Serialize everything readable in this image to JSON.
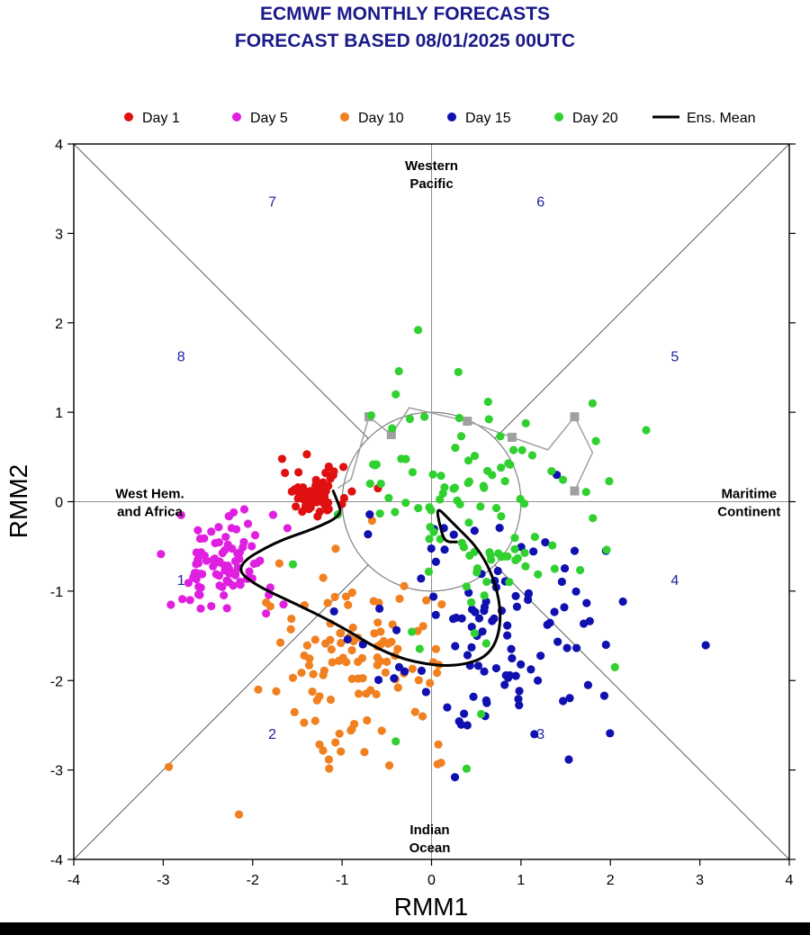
{
  "chart_data": {
    "type": "scatter",
    "title": [
      "ECMWF MONTHLY FORECASTS",
      "FORECAST  BASED 08/01/2025 00UTC"
    ],
    "xlabel": "RMM1",
    "ylabel": "RMM2",
    "xlim": [
      -4,
      4
    ],
    "ylim": [
      -4,
      4
    ],
    "xticks": [
      -4,
      -3,
      -2,
      -1,
      0,
      1,
      2,
      3,
      4
    ],
    "yticks": [
      -4,
      -3,
      -2,
      -1,
      0,
      1,
      2,
      3,
      4
    ],
    "legend": {
      "placement": "top",
      "entries": [
        {
          "label": "Day 1",
          "color": "#e01010",
          "kind": "dot"
        },
        {
          "label": "Day 5",
          "color": "#e020e0",
          "kind": "dot"
        },
        {
          "label": "Day 10",
          "color": "#f08020",
          "kind": "dot"
        },
        {
          "label": "Day 15",
          "color": "#1010b0",
          "kind": "dot"
        },
        {
          "label": "Day 20",
          "color": "#30d030",
          "kind": "dot"
        },
        {
          "label": "Ens. Mean",
          "color": "#000000",
          "kind": "line"
        }
      ]
    },
    "region_labels": [
      {
        "text": [
          "Western",
          "Pacific"
        ],
        "x": 0.0,
        "y": 3.67
      },
      {
        "text": [
          "Indian",
          "Ocean"
        ],
        "x": -0.02,
        "y": -3.76
      },
      {
        "text": [
          "West Hem.",
          "and Africa"
        ],
        "x": -3.15,
        "y": 0.0
      },
      {
        "text": [
          "Maritime",
          "Continent"
        ],
        "x": 3.55,
        "y": 0.0
      }
    ],
    "phase_labels": [
      {
        "text": "1",
        "x": -2.8,
        "y": -0.88
      },
      {
        "text": "2",
        "x": -1.78,
        "y": -2.6
      },
      {
        "text": "3",
        "x": 1.22,
        "y": -2.6
      },
      {
        "text": "4",
        "x": 2.72,
        "y": -0.88
      },
      {
        "text": "5",
        "x": 2.72,
        "y": 1.62
      },
      {
        "text": "6",
        "x": 1.22,
        "y": 3.35
      },
      {
        "text": "7",
        "x": -1.78,
        "y": 3.35
      },
      {
        "text": "8",
        "x": -2.8,
        "y": 1.62
      }
    ],
    "unit_circle_radius": 1,
    "observed_track": {
      "color": "#a0a0a0",
      "points": [
        [
          -1.05,
          0.15
        ],
        [
          -0.9,
          0.25
        ],
        [
          -0.7,
          0.95
        ],
        [
          -0.45,
          0.75
        ],
        [
          -0.25,
          1.05
        ],
        [
          0.05,
          0.98
        ],
        [
          0.4,
          0.9
        ],
        [
          0.9,
          0.72
        ],
        [
          1.3,
          0.58
        ],
        [
          1.6,
          0.95
        ],
        [
          1.8,
          0.55
        ],
        [
          1.6,
          0.12
        ]
      ],
      "markers": [
        [
          -0.7,
          0.95
        ],
        [
          -0.45,
          0.75
        ],
        [
          0.4,
          0.9
        ],
        [
          0.9,
          0.72
        ],
        [
          1.6,
          0.95
        ],
        [
          1.6,
          0.12
        ]
      ]
    },
    "ens_mean": {
      "color": "#000000",
      "points": [
        [
          -1.1,
          0.12
        ],
        [
          -1.05,
          0.0
        ],
        [
          -1.0,
          -0.15
        ],
        [
          -1.3,
          -0.3
        ],
        [
          -1.75,
          -0.45
        ],
        [
          -2.2,
          -0.72
        ],
        [
          -2.0,
          -0.92
        ],
        [
          -1.5,
          -1.15
        ],
        [
          -1.0,
          -1.4
        ],
        [
          -0.6,
          -1.65
        ],
        [
          -0.2,
          -1.8
        ],
        [
          0.3,
          -1.85
        ],
        [
          0.7,
          -1.7
        ],
        [
          0.8,
          -1.2
        ],
        [
          0.6,
          -0.6
        ],
        [
          0.2,
          -0.2
        ],
        [
          0.05,
          -0.05
        ],
        [
          0.1,
          -0.3
        ],
        [
          0.15,
          -0.45
        ],
        [
          0.28,
          -0.45
        ]
      ]
    },
    "series": [
      {
        "name": "Day 1",
        "color": "#e01010",
        "cluster": {
          "cx": -1.3,
          "cy": 0.1,
          "rx": 0.18,
          "ry": 0.13,
          "n": 70
        }
      },
      {
        "name": "Day 5",
        "color": "#e020e0",
        "cluster": {
          "cx": -2.35,
          "cy": -0.7,
          "rx": 0.3,
          "ry": 0.3,
          "n": 90
        }
      },
      {
        "name": "Day 10",
        "color": "#f08020",
        "cluster": {
          "cx": -0.8,
          "cy": -1.75,
          "rx": 0.5,
          "ry": 0.5,
          "n": 110
        }
      },
      {
        "name": "Day 15",
        "color": "#1010b0",
        "cluster": {
          "cx": 0.7,
          "cy": -1.5,
          "rx": 0.75,
          "ry": 0.6,
          "n": 105
        }
      },
      {
        "name": "Day 20",
        "color": "#30d030",
        "cluster": {
          "cx": 0.55,
          "cy": -0.15,
          "rx": 0.7,
          "ry": 0.7,
          "n": 105
        }
      }
    ],
    "extra_points": {
      "Day 20": [
        [
          -0.15,
          1.92
        ],
        [
          0.3,
          1.45
        ],
        [
          -0.4,
          1.2
        ],
        [
          1.8,
          1.1
        ],
        [
          2.4,
          0.8
        ],
        [
          2.05,
          -1.85
        ],
        [
          -0.4,
          -2.68
        ],
        [
          -1.55,
          -0.7
        ]
      ],
      "Day 15": [
        [
          1.95,
          -0.55
        ],
        [
          1.6,
          -0.55
        ],
        [
          1.95,
          -1.6
        ],
        [
          1.75,
          -2.05
        ],
        [
          1.15,
          -2.6
        ],
        [
          1.4,
          0.3
        ],
        [
          0.4,
          -2.5
        ]
      ],
      "Day 10": [
        [
          -1.3,
          -2.45
        ],
        [
          -0.75,
          -2.8
        ],
        [
          -1.55,
          -1.97
        ],
        [
          -0.1,
          -2.4
        ]
      ],
      "Day 5": [
        [
          -2.8,
          -0.15
        ],
        [
          -1.85,
          -1.25
        ],
        [
          -2.7,
          -1.1
        ]
      ]
    }
  }
}
